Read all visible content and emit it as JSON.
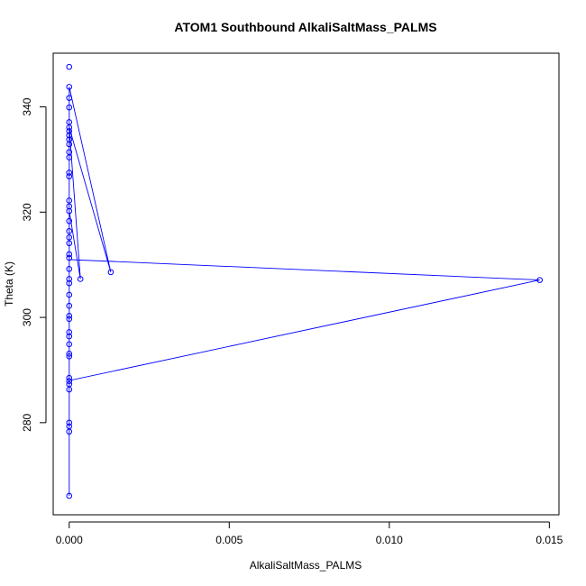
{
  "chart_data": {
    "type": "scatter",
    "title": "ATOM1 Southbound AlkaliSaltMass_PALMS",
    "xlabel": "AlkaliSaltMass_PALMS",
    "ylabel": "Theta (K)",
    "x_ticks": [
      "0.000",
      "0.005",
      "0.010",
      "0.015"
    ],
    "y_ticks": [
      "280",
      "300",
      "320",
      "340"
    ],
    "xlim": [
      -0.0005,
      0.0153
    ],
    "ylim": [
      262.5,
      350.2
    ],
    "grid": false,
    "colors": {
      "series": "#0000ff",
      "axis": "#000000"
    },
    "series": [
      {
        "x": [
          0,
          0,
          0,
          0,
          0,
          0,
          0,
          0,
          0,
          0,
          0,
          0,
          0,
          0,
          0,
          0,
          0,
          0,
          0,
          0,
          0,
          0,
          0,
          0,
          0,
          0,
          0,
          0,
          0,
          0,
          0,
          0,
          0,
          0,
          0,
          0,
          0,
          0,
          0,
          0,
          0,
          0,
          0,
          0.00035,
          0.0013,
          0.0147
        ],
        "y": [
          266.1,
          278.3,
          279.3,
          280.0,
          286.3,
          287.3,
          287.9,
          288.5,
          292.6,
          293.1,
          294.9,
          296.4,
          297.2,
          299.7,
          300.3,
          302.2,
          304.3,
          306.5,
          307.3,
          309.2,
          311.3,
          312.0,
          314.1,
          315.2,
          316.4,
          318.3,
          320.2,
          321.1,
          322.2,
          326.8,
          327.5,
          330.4,
          331.4,
          332.9,
          333.8,
          334.6,
          335.4,
          336.1,
          337.1,
          339.9,
          341.7,
          343.8,
          347.6,
          307.3,
          308.6,
          307.1
        ],
        "line_order": [
          [
            0,
            266.1
          ],
          [
            0,
            343.8
          ],
          [
            0.0013,
            308.6
          ],
          [
            0,
            336.1
          ],
          [
            0.00035,
            307.3
          ],
          [
            0,
            320.2
          ],
          [
            0,
            311.0
          ],
          [
            0.0147,
            307.1
          ],
          [
            0,
            288.0
          ],
          [
            0,
            266.1
          ]
        ]
      }
    ]
  }
}
